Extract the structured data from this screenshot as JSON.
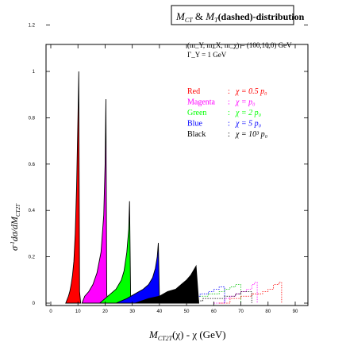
{
  "chart_data": {
    "type": "area",
    "title": "M_CT & M_T(dashed)-distribution",
    "title_parts": {
      "m1": "M",
      "s1": "CT",
      "amp": " & ",
      "m2": "M",
      "s2": "T",
      "rest": "(dashed)-distribution"
    },
    "xlabel": "M_CT2T(χ) - χ  (GeV)",
    "xlabel_parts": {
      "m": "M",
      "s": "CT2T",
      "rest": "(χ) - χ  (GeV)"
    },
    "ylabel": "σ⁻¹dσ/dM_CT2T",
    "ylabel_parts": {
      "pre": "σ",
      "sup": "-1",
      "mid": "dσ/dM",
      "sub": "CT2T"
    },
    "xlim": [
      0,
      90
    ],
    "ylim": [
      0,
      1.25
    ],
    "xticks": [
      0,
      10,
      20,
      30,
      40,
      50,
      60,
      70,
      80,
      90
    ],
    "yticks": [
      0,
      0.2,
      0.4,
      0.6,
      0.8,
      1,
      1.2
    ],
    "params_line1": "(m_Y, m_X, m_χ) = (100,10,0) GeV",
    "params_line2": "Γ_Y = 1 GeV",
    "legend_rows": [
      {
        "name": "Red",
        "sep": ":",
        "expr": "χ = 0.5 p₀",
        "color": "#ff0000"
      },
      {
        "name": "Magenta",
        "sep": ":",
        "expr": "χ = p₀",
        "color": "#ff00ff"
      },
      {
        "name": "Green",
        "sep": ":",
        "expr": "χ = 2 p₀",
        "color": "#00ff00"
      },
      {
        "name": "Blue",
        "sep": ":",
        "expr": "χ = 5 p₀",
        "color": "#0000ff"
      },
      {
        "name": "Black",
        "sep": ":",
        "expr": "χ = 10³ p₀",
        "color": "#000000"
      }
    ],
    "series": [
      {
        "name": "Red",
        "color": "#ff0000",
        "x": [
          5.5,
          6.5,
          7.0,
          7.5,
          8.0,
          8.5,
          9.0,
          9.5,
          10.0,
          10.3,
          10.6,
          11.0
        ],
        "y": [
          0,
          0.03,
          0.05,
          0.08,
          0.12,
          0.18,
          0.3,
          0.5,
          0.8,
          1.0,
          0.05,
          0
        ]
      },
      {
        "name": "Magenta",
        "color": "#ff00ff",
        "x": [
          11.5,
          12.5,
          14,
          15.5,
          17,
          18.5,
          19.5,
          20.0,
          20.3,
          20.6,
          21.0
        ],
        "y": [
          0,
          0.03,
          0.05,
          0.08,
          0.13,
          0.22,
          0.38,
          0.6,
          0.88,
          0.04,
          0
        ]
      },
      {
        "name": "Green",
        "color": "#00ff00",
        "x": [
          18,
          20,
          22,
          24,
          26,
          27,
          28,
          28.7,
          29.0,
          29.4,
          30.0
        ],
        "y": [
          0,
          0.02,
          0.04,
          0.06,
          0.1,
          0.14,
          0.22,
          0.32,
          0.44,
          0.03,
          0
        ]
      },
      {
        "name": "Blue",
        "color": "#0000ff",
        "x": [
          24,
          28,
          31,
          34,
          36,
          37.5,
          38.5,
          39.2,
          39.6,
          40.0,
          40.5
        ],
        "y": [
          0,
          0.02,
          0.04,
          0.06,
          0.08,
          0.11,
          0.15,
          0.2,
          0.26,
          0.02,
          0
        ]
      },
      {
        "name": "Black",
        "color": "#000000",
        "x": [
          31,
          36,
          40,
          43,
          46,
          48,
          50,
          51.5,
          52.5,
          53.5,
          54.5
        ],
        "y": [
          0,
          0.02,
          0.03,
          0.05,
          0.06,
          0.08,
          0.1,
          0.12,
          0.14,
          0.16,
          0
        ]
      }
    ],
    "dashed_series": [
      {
        "name": "Green dashed",
        "color": "#00c000",
        "x": [
          46,
          50,
          54,
          58,
          62,
          64,
          66,
          68,
          70
        ],
        "y": [
          0,
          0.02,
          0.03,
          0.04,
          0.05,
          0.06,
          0.07,
          0.08,
          0
        ]
      },
      {
        "name": "Magenta dashed",
        "color": "#ff00ff",
        "x": [
          60,
          64,
          66,
          68,
          70,
          72,
          74,
          75,
          76
        ],
        "y": [
          0,
          0.02,
          0.03,
          0.04,
          0.05,
          0.06,
          0.08,
          0.09,
          0
        ]
      },
      {
        "name": "Red dashed",
        "color": "#ff0000",
        "x": [
          62,
          66,
          70,
          74,
          78,
          80,
          82,
          84,
          85
        ],
        "y": [
          0,
          0.02,
          0.03,
          0.04,
          0.05,
          0.06,
          0.08,
          0.09,
          0
        ]
      },
      {
        "name": "Blue dashed",
        "color": "#0000ff",
        "x": [
          44,
          48,
          52,
          55,
          58,
          60,
          62,
          64
        ],
        "y": [
          0,
          0.02,
          0.03,
          0.04,
          0.05,
          0.06,
          0.07,
          0
        ]
      },
      {
        "name": "Black dashed",
        "color": "#000000",
        "x": [
          48,
          52,
          56,
          60,
          64,
          68,
          70,
          72,
          74
        ],
        "y": [
          0,
          0.01,
          0.02,
          0.02,
          0.03,
          0.04,
          0.05,
          0.05,
          0
        ]
      }
    ]
  }
}
